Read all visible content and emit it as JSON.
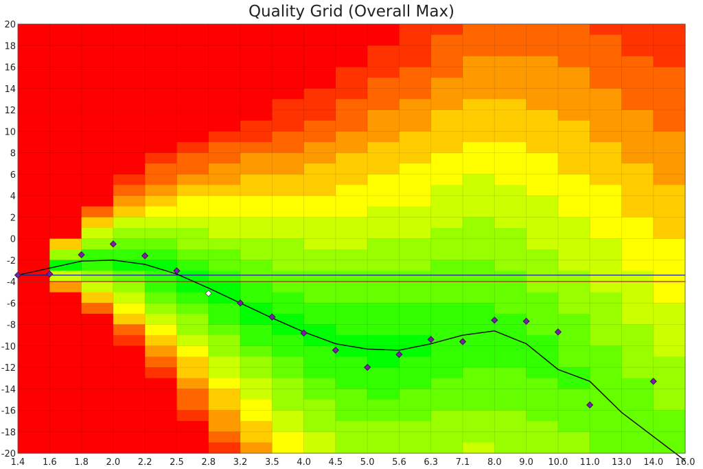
{
  "chart_data": {
    "type": "heatmap",
    "title": "Quality Grid (Overall Max)",
    "xlabel": "",
    "ylabel": "",
    "x_categories": [
      "1.4",
      "1.6",
      "1.8",
      "2.0",
      "2.2",
      "2.5",
      "2.8",
      "3.2",
      "3.5",
      "4.0",
      "4.5",
      "5.0",
      "5.6",
      "6.3",
      "7.1",
      "8.0",
      "9.0",
      "10.0",
      "11.0",
      "13.0",
      "14.0",
      "16.0"
    ],
    "y_ticks": [
      20,
      18,
      16,
      14,
      12,
      10,
      8,
      6,
      4,
      2,
      0,
      -2,
      -4,
      -6,
      -8,
      -10,
      -12,
      -14,
      -16,
      -18,
      -20
    ],
    "ylim": [
      -20,
      20
    ],
    "grid": true,
    "color_scale": [
      "#ff0000",
      "#ffff00",
      "#00ff00"
    ],
    "reference_lines": [
      {
        "y": -3.4,
        "color": "#1a237e"
      },
      {
        "y": -4.0,
        "color": "#b71c1c"
      }
    ],
    "points": [
      {
        "x": "1.4",
        "y": -3.4
      },
      {
        "x": "1.6",
        "y": -3.3
      },
      {
        "x": "1.8",
        "y": -1.5
      },
      {
        "x": "2.0",
        "y": -0.5
      },
      {
        "x": "2.2",
        "y": -1.6
      },
      {
        "x": "2.5",
        "y": -3.0
      },
      {
        "x": "2.8",
        "y": -5.1,
        "highlight": true
      },
      {
        "x": "3.2",
        "y": -6.0
      },
      {
        "x": "3.5",
        "y": -7.3
      },
      {
        "x": "4.0",
        "y": -8.8
      },
      {
        "x": "4.5",
        "y": -10.4
      },
      {
        "x": "5.0",
        "y": -12.0
      },
      {
        "x": "5.6",
        "y": -10.8
      },
      {
        "x": "6.3",
        "y": -9.4
      },
      {
        "x": "7.1",
        "y": -9.6
      },
      {
        "x": "8.0",
        "y": -7.6
      },
      {
        "x": "9.0",
        "y": -7.7
      },
      {
        "x": "10.0",
        "y": -8.7
      },
      {
        "x": "11.0",
        "y": -15.5
      },
      {
        "x": "14.0",
        "y": -13.3
      }
    ],
    "fit_line": [
      {
        "x": "1.4",
        "y": -3.4
      },
      {
        "x": "1.8",
        "y": -2.1
      },
      {
        "x": "2.0",
        "y": -2.0
      },
      {
        "x": "2.2",
        "y": -2.4
      },
      {
        "x": "2.5",
        "y": -3.3
      },
      {
        "x": "2.8",
        "y": -4.6
      },
      {
        "x": "3.2",
        "y": -6.0
      },
      {
        "x": "3.5",
        "y": -7.4
      },
      {
        "x": "4.0",
        "y": -8.7
      },
      {
        "x": "4.5",
        "y": -9.8
      },
      {
        "x": "5.0",
        "y": -10.3
      },
      {
        "x": "5.6",
        "y": -10.4
      },
      {
        "x": "6.3",
        "y": -9.8
      },
      {
        "x": "7.1",
        "y": -9.0
      },
      {
        "x": "8.0",
        "y": -8.6
      },
      {
        "x": "9.0",
        "y": -9.8
      },
      {
        "x": "10.0",
        "y": -12.2
      },
      {
        "x": "11.0",
        "y": -13.3
      },
      {
        "x": "13.0",
        "y": -16.2
      },
      {
        "x": "16.0",
        "y": -20.7
      }
    ]
  }
}
